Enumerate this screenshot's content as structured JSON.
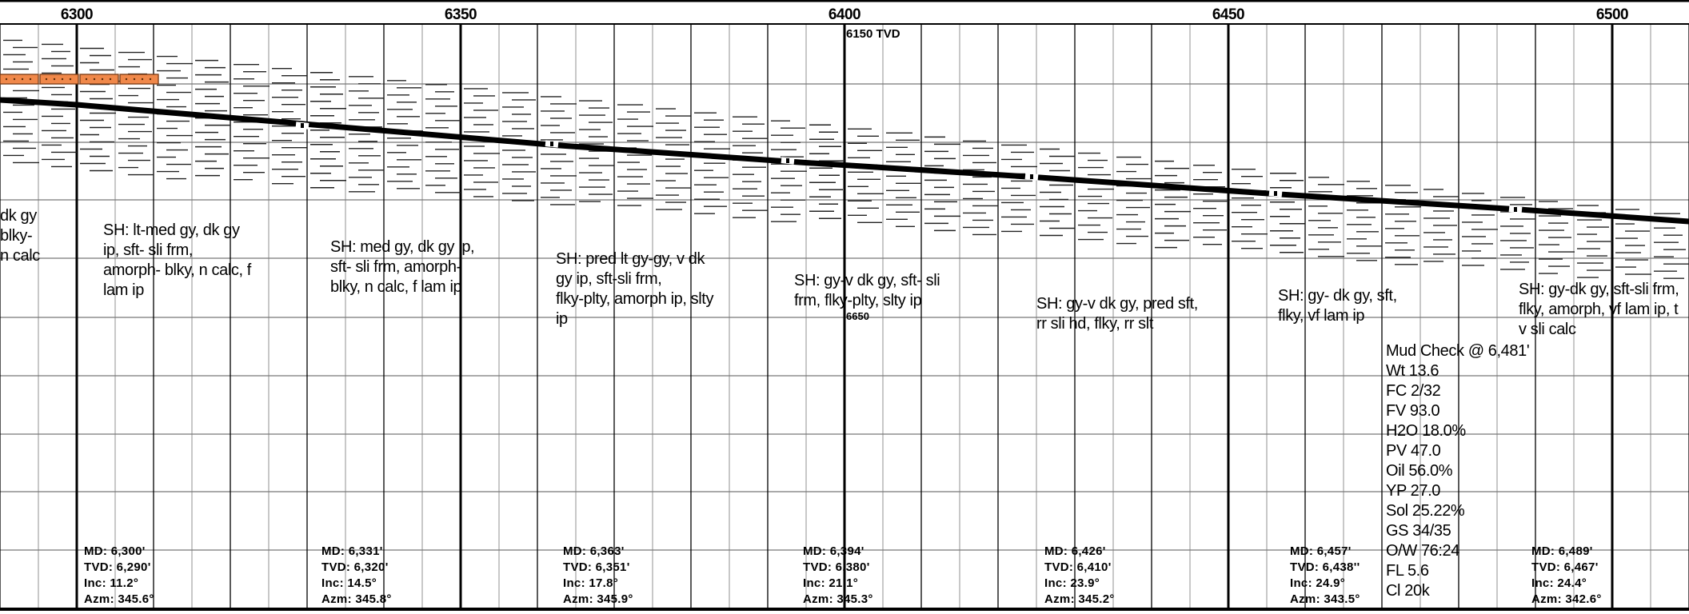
{
  "depth_ticks": [
    "6300",
    "6350",
    "6400",
    "6450",
    "6500"
  ],
  "tvd_labels": [
    "6150 TVD",
    "6650"
  ],
  "lithology": [
    {
      "id": "1",
      "text": "dk gy\nblky-\nn calc"
    },
    {
      "id": "2",
      "text": "SH: lt-med gy, dk gy\nip, sft- sli frm,\namorph- blky, n calc, f\nlam ip"
    },
    {
      "id": "3",
      "text": "SH: med gy, dk gy ip,\nsft- sli frm, amorph-\nblky, n calc, f lam ip"
    },
    {
      "id": "4",
      "text": "SH: pred lt gy-gy, v dk\ngy ip, sft-sli frm,\nflky-plty, amorph ip, slty\nip"
    },
    {
      "id": "5",
      "text": "SH: gy-v dk gy, sft- sli\nfrm, flky-plty, slty ip"
    },
    {
      "id": "6",
      "text": "SH: gy-v dk gy, pred sft,\nrr sli hd, flky, rr slt"
    },
    {
      "id": "7",
      "text": "SH: gy- dk gy, sft,\nflky, vf lam ip"
    },
    {
      "id": "8",
      "text": "SH: gy-dk gy, sft-sli frm,\nflky, amorph, vf lam ip, t\nv sli calc"
    }
  ],
  "mud_check": {
    "title": "Mud Check @ 6,481'",
    "rows": [
      "Wt 13.6",
      "FC 2/32",
      "FV 93.0",
      "H2O 18.0%",
      "PV 47.0",
      "Oil 56.0%",
      "YP 27.0",
      "Sol 25.22%",
      "GS 34/35",
      "O/W 76:24",
      "FL 5.6",
      "Cl 20k"
    ]
  },
  "surveys": [
    {
      "md": "MD: 6,300'",
      "tvd": "TVD: 6,290'",
      "inc": "Inc: 11.2°",
      "azm": "Azm: 345.6°"
    },
    {
      "md": "MD: 6,331'",
      "tvd": "TVD: 6,320'",
      "inc": "Inc: 14.5°",
      "azm": "Azm: 345.8°"
    },
    {
      "md": "MD: 6,363'",
      "tvd": "TVD: 6,351'",
      "inc": "Inc: 17.8°",
      "azm": "Azm: 345.9°"
    },
    {
      "md": "MD: 6,394'",
      "tvd": "TVD: 6,380'",
      "inc": "Inc: 21.1°",
      "azm": "Azm: 345.3°"
    },
    {
      "md": "MD: 6,426'",
      "tvd": "TVD: 6,410'",
      "inc": "Inc: 23.9°",
      "azm": "Azm: 345.2°"
    },
    {
      "md": "MD: 6,457'",
      "tvd": "TVD: 6,438''",
      "inc": "Inc: 24.9°",
      "azm": "Azm: 343.5°"
    },
    {
      "md": "MD: 6,489'",
      "tvd": "TVD: 6,467'",
      "inc": "Inc: 24.4°",
      "azm": "Azm: 342.6°"
    }
  ],
  "colors": {
    "line": "#000000",
    "grid": "#555555",
    "lithology_box": "#f0884a",
    "lithology_box_border": "#7a3a12"
  }
}
